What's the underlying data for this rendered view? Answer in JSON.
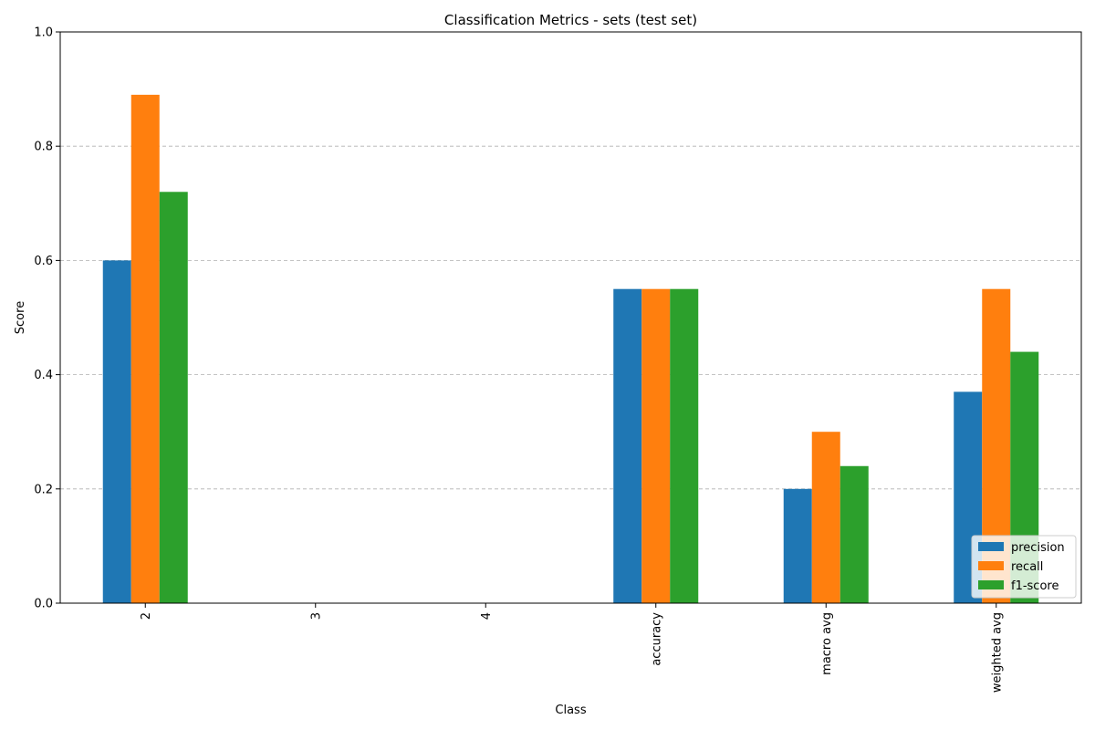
{
  "chart_data": {
    "type": "bar",
    "title": "Classification Metrics - sets (test set)",
    "xlabel": "Class",
    "ylabel": "Score",
    "ylim": [
      0,
      1.0
    ],
    "yticks": [
      "0.0",
      "0.2",
      "0.4",
      "0.6",
      "0.8",
      "1.0"
    ],
    "grid": "y-dashed",
    "legend_position": "lower-right",
    "categories": [
      "2",
      "3",
      "4",
      "accuracy",
      "macro avg",
      "weighted avg"
    ],
    "series": [
      {
        "name": "precision",
        "color": "#1f77b4",
        "values": [
          0.6,
          0.0,
          0.0,
          0.55,
          0.2,
          0.37
        ]
      },
      {
        "name": "recall",
        "color": "#ff7f0e",
        "values": [
          0.89,
          0.0,
          0.0,
          0.55,
          0.3,
          0.55
        ]
      },
      {
        "name": "f1-score",
        "color": "#2ca02c",
        "values": [
          0.72,
          0.0,
          0.0,
          0.55,
          0.24,
          0.44
        ]
      }
    ]
  }
}
